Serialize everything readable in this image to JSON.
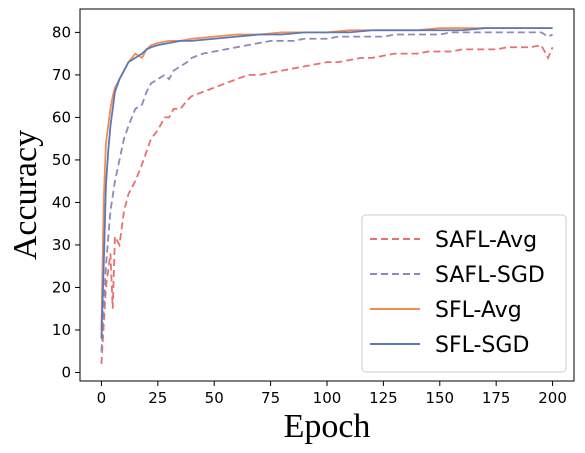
{
  "chart_data": {
    "type": "line",
    "xlabel": "Epoch",
    "ylabel": "Accuracy",
    "xlim": [
      -9.5,
      209.5
    ],
    "ylim": [
      -2,
      85.5
    ],
    "xticks": [
      0,
      25,
      50,
      75,
      100,
      125,
      150,
      175,
      200
    ],
    "yticks": [
      0,
      10,
      20,
      30,
      40,
      50,
      60,
      70,
      80
    ],
    "grid": false,
    "legend_position": "bottom-right",
    "series": [
      {
        "name": "SAFL-Avg",
        "color": "#e8706e",
        "dash": "dashed",
        "x": [
          0,
          2,
          4,
          5,
          6,
          8,
          10,
          12,
          15,
          18,
          20,
          22,
          25,
          28,
          30,
          32,
          35,
          38,
          40,
          45,
          50,
          55,
          60,
          65,
          70,
          75,
          80,
          85,
          90,
          95,
          100,
          105,
          110,
          115,
          120,
          125,
          130,
          135,
          140,
          145,
          150,
          155,
          160,
          165,
          170,
          175,
          180,
          185,
          190,
          195,
          198,
          200
        ],
        "values": [
          2,
          20,
          28,
          15,
          32,
          30,
          38,
          42,
          45,
          49,
          52,
          55,
          57,
          60,
          60,
          62,
          62,
          64,
          65,
          66,
          67,
          68,
          69,
          70,
          70,
          70.5,
          71,
          71.5,
          72,
          72.5,
          73,
          73,
          73.5,
          74,
          74,
          74.5,
          75,
          75,
          75,
          75.5,
          75.5,
          75.5,
          76,
          76,
          76,
          76,
          76.5,
          76.5,
          76.5,
          77,
          74,
          76.5
        ]
      },
      {
        "name": "SAFL-SGD",
        "color": "#8c89bd",
        "dash": "dashed",
        "x": [
          0,
          2,
          4,
          6,
          8,
          10,
          12,
          15,
          18,
          20,
          22,
          25,
          28,
          30,
          32,
          35,
          38,
          40,
          45,
          50,
          55,
          60,
          65,
          70,
          75,
          80,
          85,
          90,
          95,
          100,
          105,
          110,
          115,
          120,
          125,
          130,
          135,
          140,
          145,
          150,
          155,
          160,
          165,
          170,
          175,
          180,
          185,
          190,
          195,
          198,
          200
        ],
        "values": [
          5,
          25,
          38,
          45,
          50,
          55,
          58,
          62,
          63,
          66,
          68,
          69,
          70,
          69,
          71,
          72,
          73,
          74,
          75,
          75.5,
          76,
          76.5,
          77,
          77.5,
          78,
          78,
          78,
          78.5,
          78.5,
          78.5,
          79,
          79,
          79,
          79,
          79,
          79.5,
          79.5,
          79.5,
          79.5,
          79.5,
          80,
          80,
          80,
          80,
          80,
          80,
          80,
          80,
          80,
          79,
          79.5
        ]
      },
      {
        "name": "SFL-Avg",
        "color": "#f28b55",
        "dash": "solid",
        "x": [
          0,
          1,
          2,
          3,
          4,
          5,
          6,
          8,
          10,
          12,
          15,
          18,
          20,
          22,
          25,
          30,
          35,
          40,
          50,
          60,
          70,
          80,
          90,
          100,
          110,
          120,
          130,
          140,
          150,
          160,
          170,
          180,
          190,
          200
        ],
        "values": [
          10,
          40,
          54,
          58,
          62,
          65,
          67,
          69,
          71,
          73,
          75,
          74,
          76,
          77,
          77.5,
          78,
          78,
          78.5,
          79,
          79.5,
          79.5,
          80,
          80,
          80,
          80.5,
          80.5,
          80.5,
          80.5,
          81,
          81,
          81,
          81,
          81,
          81
        ]
      },
      {
        "name": "SFL-SGD",
        "color": "#5b7ab5",
        "dash": "solid",
        "x": [
          0,
          1,
          2,
          3,
          4,
          5,
          6,
          8,
          10,
          12,
          15,
          18,
          20,
          22,
          25,
          30,
          35,
          40,
          50,
          60,
          70,
          80,
          90,
          100,
          110,
          120,
          130,
          140,
          150,
          160,
          170,
          180,
          190,
          200
        ],
        "values": [
          8,
          25,
          44,
          52,
          58,
          62,
          66,
          69,
          71,
          73,
          74,
          75,
          76,
          76.5,
          77,
          77.5,
          78,
          78,
          78.5,
          79,
          79.5,
          79.5,
          80,
          80,
          80,
          80.5,
          80.5,
          80.5,
          80.5,
          80.5,
          81,
          81,
          81,
          81
        ]
      }
    ]
  }
}
